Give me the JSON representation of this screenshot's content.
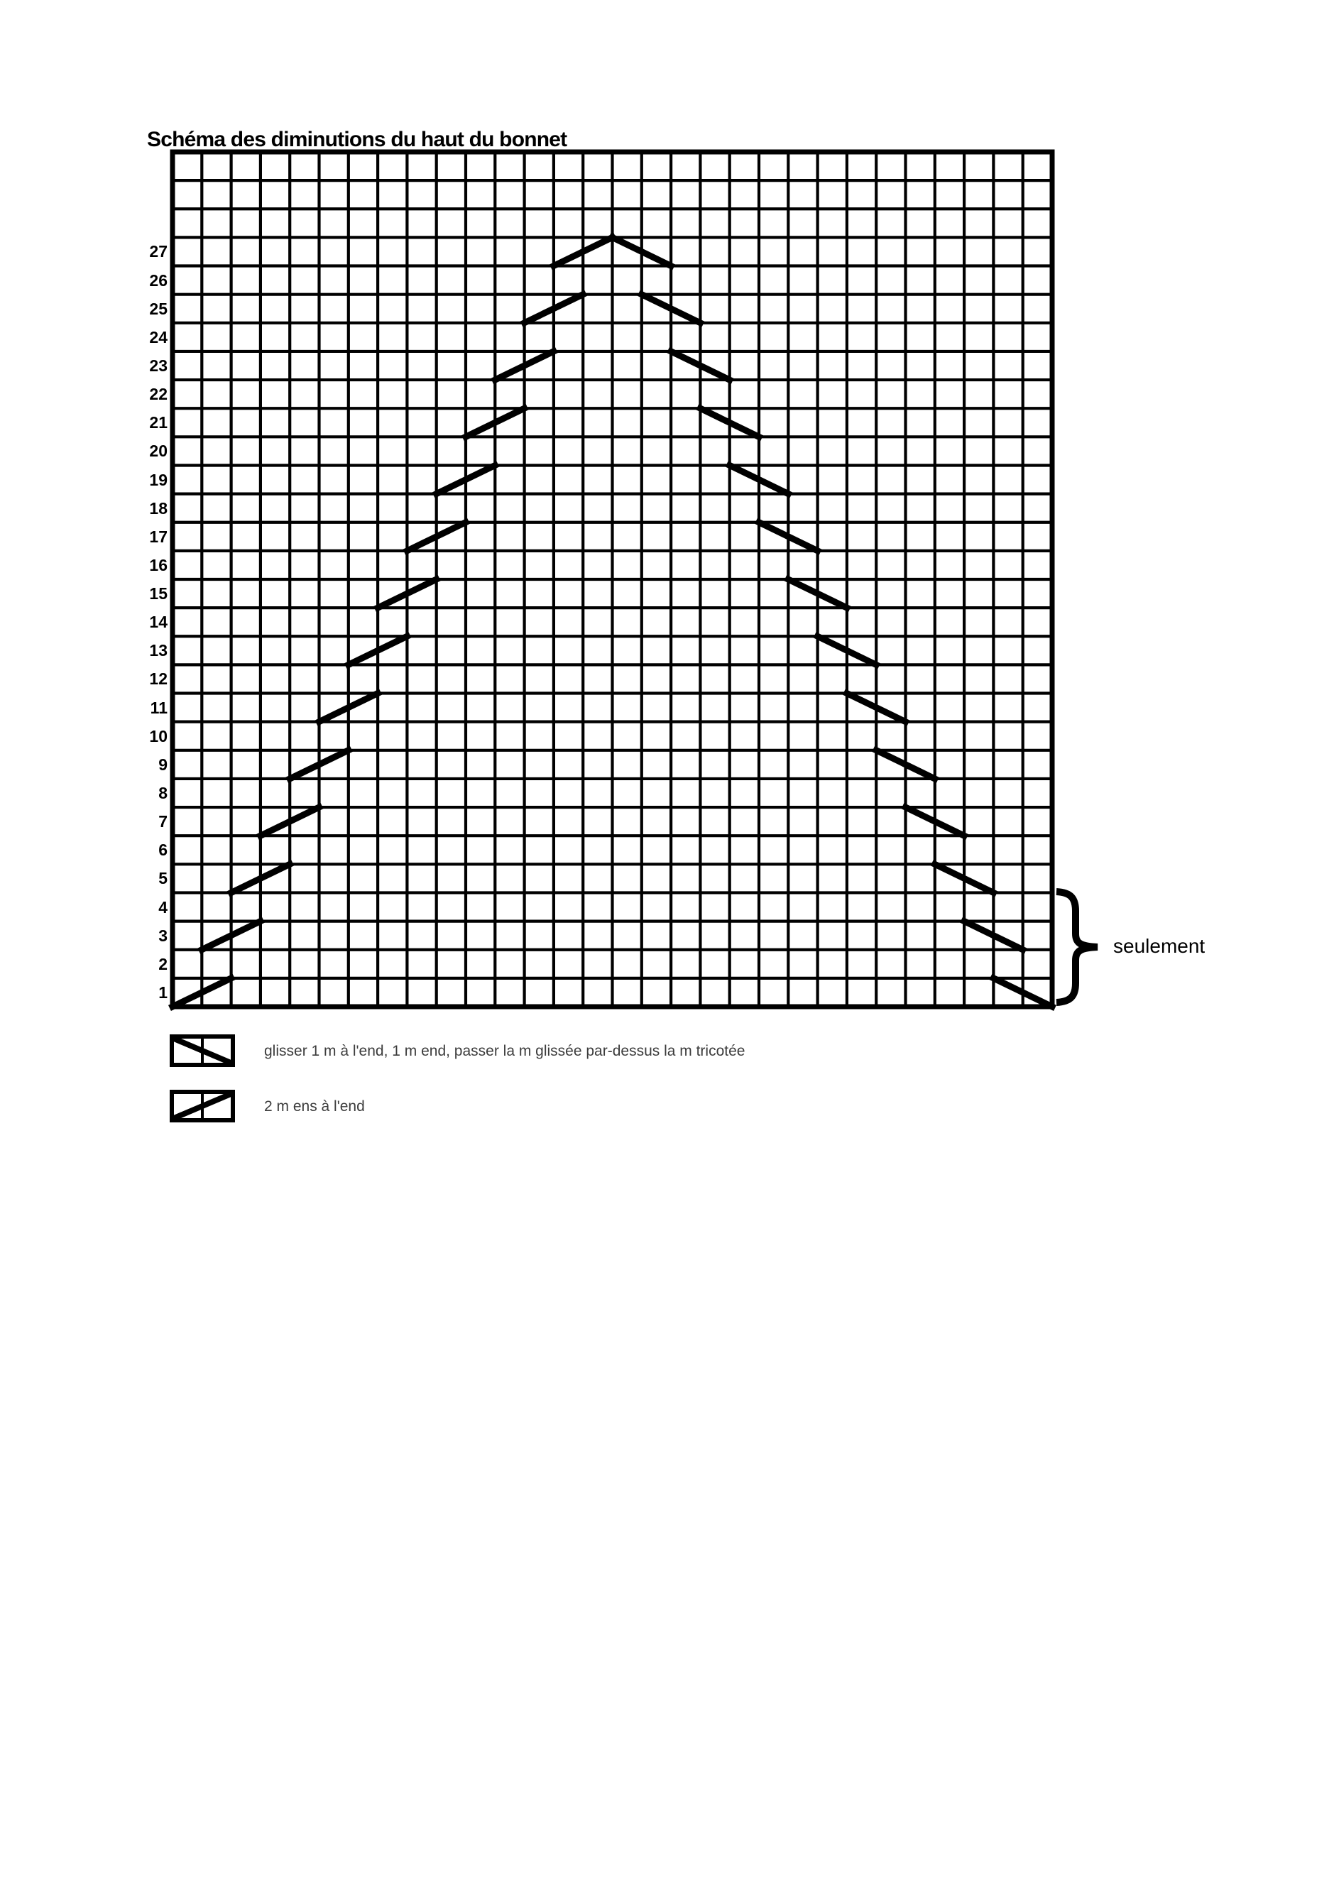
{
  "title": "Schéma des diminutions du haut du bonnet",
  "colors": {
    "ink": "#000000",
    "legend_text": "#3c3c3c",
    "background": "#ffffff"
  },
  "grid": {
    "columns": 30,
    "rows": 30,
    "labeled_rows": 27,
    "row_labels": [
      1,
      2,
      3,
      4,
      5,
      6,
      7,
      8,
      9,
      10,
      11,
      12,
      13,
      14,
      15,
      16,
      17,
      18,
      19,
      20,
      21,
      22,
      23,
      24,
      25,
      26,
      27
    ]
  },
  "chart_data": {
    "type": "knitting-chart",
    "title": "Schéma des diminutions du haut du bonnet",
    "decreases": [
      {
        "row": 1,
        "slash_col": 1,
        "backslash_col": 29
      },
      {
        "row": 3,
        "slash_col": 2,
        "backslash_col": 28
      },
      {
        "row": 5,
        "slash_col": 3,
        "backslash_col": 27
      },
      {
        "row": 7,
        "slash_col": 4,
        "backslash_col": 26
      },
      {
        "row": 9,
        "slash_col": 5,
        "backslash_col": 25
      },
      {
        "row": 11,
        "slash_col": 6,
        "backslash_col": 24
      },
      {
        "row": 13,
        "slash_col": 7,
        "backslash_col": 23
      },
      {
        "row": 15,
        "slash_col": 8,
        "backslash_col": 22
      },
      {
        "row": 17,
        "slash_col": 9,
        "backslash_col": 21
      },
      {
        "row": 19,
        "slash_col": 10,
        "backslash_col": 20
      },
      {
        "row": 21,
        "slash_col": 11,
        "backslash_col": 19
      },
      {
        "row": 23,
        "slash_col": 12,
        "backslash_col": 18
      },
      {
        "row": 25,
        "slash_col": 13,
        "backslash_col": 17
      },
      {
        "row": 27,
        "slash_col": 14,
        "backslash_col": 16
      }
    ]
  },
  "legend": [
    {
      "symbol": "backslash",
      "label": "glisser 1 m à l'end, 1 m end, passer la m glissée par-dessus la m tricotée"
    },
    {
      "symbol": "slash",
      "label": "2 m ens à l'end"
    }
  ],
  "annotation": {
    "label": "seulement",
    "rows_from": 1,
    "rows_to": 4
  }
}
